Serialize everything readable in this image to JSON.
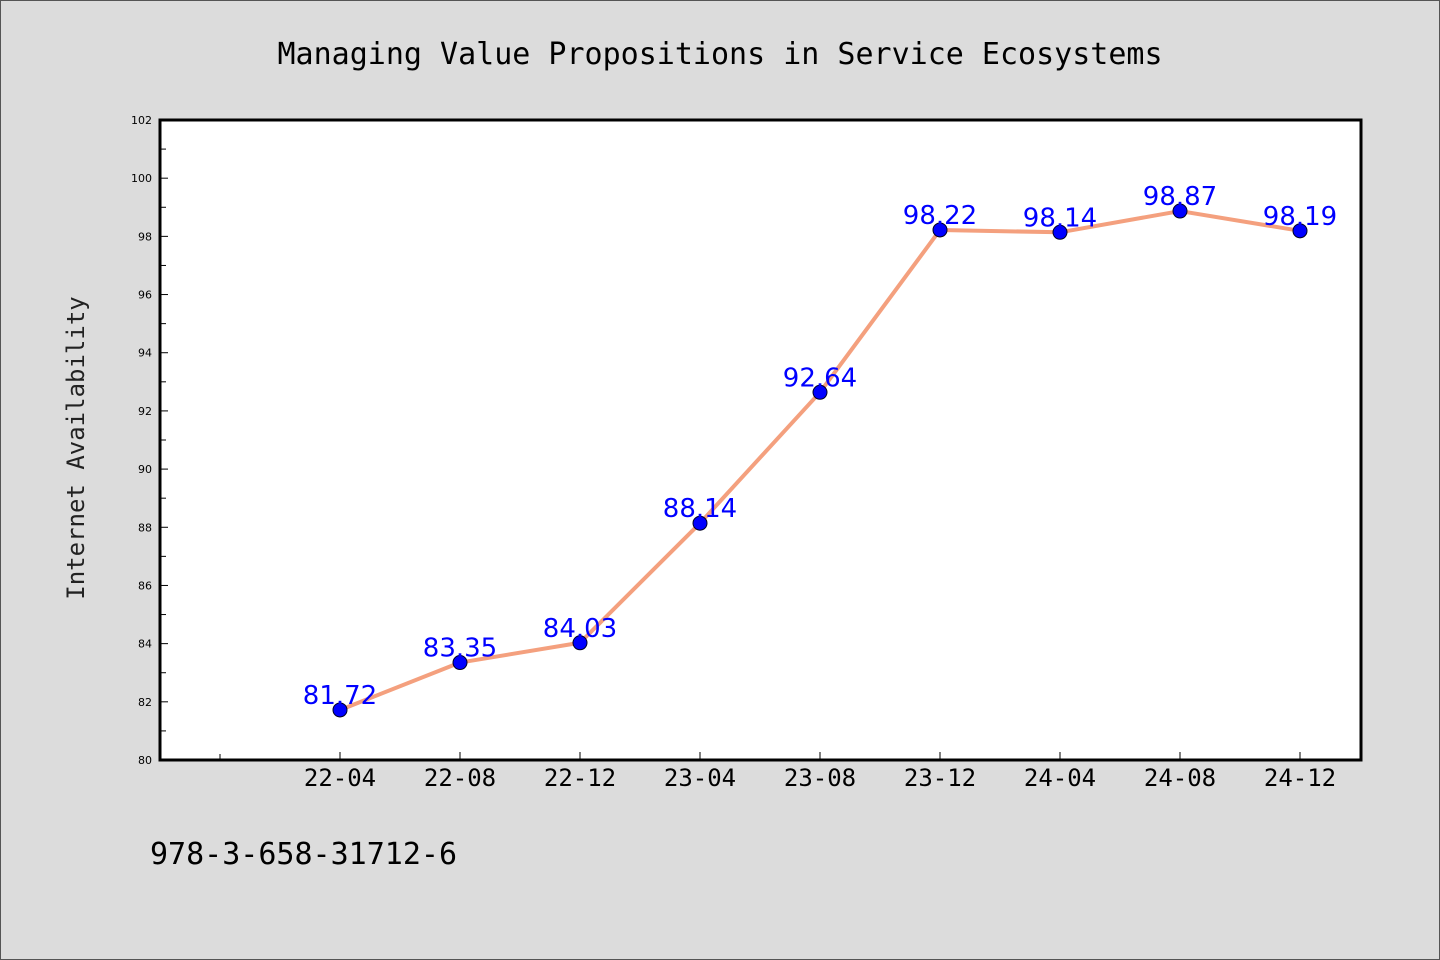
{
  "chart_data": {
    "type": "line",
    "title": "Managing Value Propositions in Service Ecosystems",
    "xlabel": "",
    "ylabel": "Internet Availability",
    "categories": [
      "22-04",
      "22-08",
      "22-12",
      "23-04",
      "23-08",
      "23-12",
      "24-04",
      "24-08",
      "24-12"
    ],
    "series": [
      {
        "values": [
          81.72,
          83.35,
          84.03,
          88.14,
          92.64,
          98.22,
          98.14,
          98.87,
          98.19
        ],
        "line_color": "#f4a07e",
        "marker_color": "#0000ff"
      }
    ],
    "ylim": [
      80,
      102
    ],
    "yticks": [
      "80",
      "82",
      "84",
      "86",
      "88",
      "90",
      "92",
      "94",
      "96",
      "98",
      "100",
      "102"
    ],
    "data_labels": [
      "81.72",
      "83.35",
      "84.03",
      "88.14",
      "92.64",
      "98.22",
      "98.14",
      "98.87",
      "98.19"
    ],
    "label_color": "#0000ff",
    "grid": false,
    "legend": "none"
  },
  "footer": {
    "isbn": "978-3-658-31712-6"
  }
}
